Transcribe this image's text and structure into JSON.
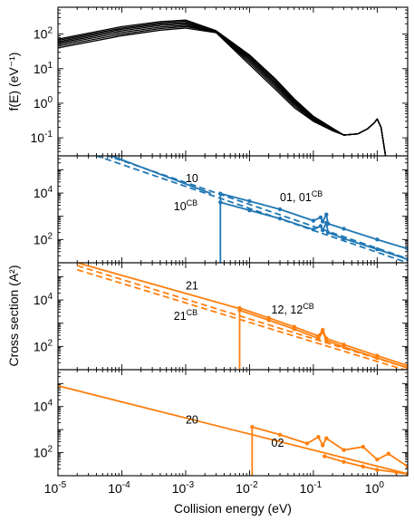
{
  "chart_data": [
    {
      "id": "distribution",
      "type": "line",
      "xscale": "log",
      "yscale": "log",
      "xlim": [
        1e-05,
        3
      ],
      "ylim": [
        0.03,
        600
      ],
      "ylabel": "f(E)  (eV⁻¹)",
      "yticks": [
        {
          "base": "10",
          "exp": "-1",
          "value": 0.1
        },
        {
          "base": "10",
          "exp": "0",
          "value": 1
        },
        {
          "base": "10",
          "exp": "1",
          "value": 10
        },
        {
          "base": "10",
          "exp": "2",
          "value": 100
        }
      ],
      "color": "#000000",
      "series": [
        {
          "x": [
            1e-05,
            0.0001,
            0.0004,
            0.001,
            0.003,
            0.01,
            0.025,
            0.05,
            0.1,
            0.2,
            0.3,
            0.5,
            0.7,
            0.9,
            1.0,
            1.15,
            1.35
          ],
          "y": [
            40,
            90,
            130,
            150,
            110,
            13,
            2.6,
            0.75,
            0.3,
            0.16,
            0.12,
            0.13,
            0.18,
            0.27,
            0.35,
            0.2,
            0.03
          ]
        },
        {
          "x": [
            1e-05,
            0.0001,
            0.0004,
            0.001,
            0.003,
            0.01,
            0.025,
            0.05,
            0.1,
            0.2,
            0.3,
            0.5,
            0.7,
            0.9,
            1.0,
            1.15,
            1.35
          ],
          "y": [
            45,
            100,
            145,
            165,
            115,
            15,
            3.0,
            0.85,
            0.32,
            0.16,
            0.12,
            0.13,
            0.18,
            0.27,
            0.35,
            0.2,
            0.03
          ]
        },
        {
          "x": [
            1e-05,
            0.0001,
            0.0004,
            0.001,
            0.003,
            0.01,
            0.025,
            0.05,
            0.1,
            0.2,
            0.3,
            0.5,
            0.7,
            0.9,
            1.0,
            1.15,
            1.35
          ],
          "y": [
            50,
            112,
            160,
            180,
            118,
            17,
            3.4,
            0.95,
            0.34,
            0.17,
            0.12,
            0.13,
            0.18,
            0.27,
            0.35,
            0.2,
            0.03
          ]
        },
        {
          "x": [
            1e-05,
            0.0001,
            0.0004,
            0.001,
            0.003,
            0.01,
            0.025,
            0.05,
            0.1,
            0.2,
            0.3,
            0.5,
            0.7,
            0.9,
            1.0,
            1.15,
            1.35
          ],
          "y": [
            55,
            125,
            178,
            198,
            120,
            19,
            3.8,
            1.05,
            0.36,
            0.17,
            0.12,
            0.13,
            0.18,
            0.27,
            0.35,
            0.2,
            0.03
          ]
        },
        {
          "x": [
            1e-05,
            0.0001,
            0.0004,
            0.001,
            0.003,
            0.01,
            0.025,
            0.05,
            0.1,
            0.2,
            0.3,
            0.5,
            0.7,
            0.9,
            1.0,
            1.15,
            1.35
          ],
          "y": [
            60,
            138,
            195,
            215,
            122,
            21,
            4.2,
            1.15,
            0.38,
            0.18,
            0.12,
            0.13,
            0.18,
            0.27,
            0.35,
            0.2,
            0.03
          ]
        },
        {
          "x": [
            1e-05,
            0.0001,
            0.0004,
            0.001,
            0.003,
            0.01,
            0.025,
            0.05,
            0.1,
            0.2,
            0.3,
            0.5,
            0.7,
            0.9,
            1.0,
            1.15,
            1.35
          ],
          "y": [
            66,
            150,
            212,
            235,
            124,
            23,
            4.7,
            1.25,
            0.4,
            0.18,
            0.12,
            0.13,
            0.18,
            0.27,
            0.35,
            0.2,
            0.03
          ]
        },
        {
          "x": [
            1e-05,
            0.0001,
            0.0004,
            0.001,
            0.003,
            0.01,
            0.025,
            0.05,
            0.1,
            0.2,
            0.3,
            0.5,
            0.7,
            0.9,
            1.0,
            1.15,
            1.35
          ],
          "y": [
            72,
            165,
            230,
            255,
            126,
            25,
            5.2,
            1.35,
            0.42,
            0.19,
            0.12,
            0.13,
            0.18,
            0.27,
            0.35,
            0.2,
            0.03
          ]
        }
      ]
    },
    {
      "id": "panel-10-01",
      "type": "line",
      "xscale": "log",
      "yscale": "log",
      "xlim": [
        1e-05,
        3
      ],
      "ylim": [
        10,
        400000
      ],
      "yticks": [
        {
          "base": "10",
          "exp": "2",
          "value": 100
        },
        {
          "base": "10",
          "exp": "4",
          "value": 10000
        }
      ],
      "color": "#1f77b4",
      "series": [
        {
          "name": "10",
          "style": "solid",
          "x": [
            1e-05,
            0.0025
          ],
          "y": [
            3000000,
            9500
          ]
        },
        {
          "name": "10CB",
          "style": "dashed",
          "x": [
            1e-05,
            3
          ],
          "y": [
            2200000,
            15
          ]
        },
        {
          "style": "dashed",
          "x": [
            1e-05,
            3
          ],
          "y": [
            1500000,
            10
          ]
        },
        {
          "name": "01",
          "style": "solid",
          "markers": true,
          "x": [
            0.0035,
            0.01,
            0.03,
            0.1,
            0.13,
            0.14,
            0.16,
            0.17,
            0.3,
            1,
            3
          ],
          "y": [
            9500,
            4500,
            2000,
            650,
            900,
            600,
            1200,
            480,
            290,
            100,
            40
          ]
        },
        {
          "name": "01CB",
          "style": "solid",
          "markers": true,
          "x": [
            0.0035,
            0.01,
            0.03,
            0.1,
            0.13,
            0.14,
            0.16,
            0.17,
            0.3,
            1,
            3
          ],
          "y": [
            4000,
            1800,
            800,
            270,
            380,
            250,
            520,
            200,
            110,
            38,
            14
          ]
        },
        {
          "style": "solid",
          "x": [
            0.0035,
            0.0035
          ],
          "y": [
            10,
            9500
          ]
        }
      ],
      "annotations": [
        {
          "text": "10",
          "x": 0.001,
          "y": 30000
        },
        {
          "text": "10",
          "sup": "CB",
          "x": 0.00065,
          "y": 1800
        },
        {
          "text": "01, 01",
          "sup": "CB",
          "x": 0.03,
          "y": 4500
        }
      ]
    },
    {
      "id": "panel-21-12",
      "type": "line",
      "xscale": "log",
      "yscale": "log",
      "xlim": [
        1e-05,
        3
      ],
      "ylim": [
        10,
        400000
      ],
      "yticks": [
        {
          "base": "10",
          "exp": "2",
          "value": 100
        },
        {
          "base": "10",
          "exp": "4",
          "value": 10000
        }
      ],
      "color": "#ff7f0e",
      "series": [
        {
          "name": "21",
          "style": "solid",
          "x": [
            2e-05,
            0.0065
          ],
          "y": [
            400000,
            4500
          ]
        },
        {
          "name": "21CB",
          "style": "dashed",
          "x": [
            2e-05,
            3
          ],
          "y": [
            300000,
            12
          ]
        },
        {
          "style": "dashed",
          "x": [
            2e-05,
            3
          ],
          "y": [
            200000,
            9
          ]
        },
        {
          "name": "12",
          "style": "solid",
          "markers": true,
          "x": [
            0.007,
            0.02,
            0.05,
            0.12,
            0.14,
            0.16,
            0.3,
            1,
            3
          ],
          "y": [
            4500,
            1700,
            700,
            280,
            520,
            220,
            120,
            40,
            15
          ]
        },
        {
          "name": "12CB",
          "style": "solid",
          "markers": true,
          "x": [
            0.007,
            0.02,
            0.05,
            0.12,
            0.14,
            0.16,
            0.3,
            1,
            3
          ],
          "y": [
            3600,
            1350,
            560,
            220,
            420,
            180,
            95,
            32,
            12
          ]
        },
        {
          "style": "solid",
          "x": [
            0.007,
            0.007
          ],
          "y": [
            10,
            4500
          ]
        }
      ],
      "annotations": [
        {
          "text": "21",
          "x": 0.001,
          "y": 28000
        },
        {
          "text": "21",
          "sup": "CB",
          "x": 0.00065,
          "y": 1400
        },
        {
          "text": "12, 12",
          "sup": "CB",
          "x": 0.022,
          "y": 2600
        }
      ]
    },
    {
      "id": "panel-20-02",
      "type": "line",
      "xscale": "log",
      "yscale": "log",
      "xlim": [
        1e-05,
        3
      ],
      "ylim": [
        10,
        400000
      ],
      "yticks": [
        {
          "base": "10",
          "exp": "2",
          "value": 100
        },
        {
          "base": "10",
          "exp": "4",
          "value": 10000
        }
      ],
      "xticks": [
        {
          "base": "10",
          "exp": "-5",
          "value": 1e-05
        },
        {
          "base": "10",
          "exp": "-4",
          "value": 0.0001
        },
        {
          "base": "10",
          "exp": "-3",
          "value": 0.001
        },
        {
          "base": "10",
          "exp": "-2",
          "value": 0.01
        },
        {
          "base": "10",
          "exp": "-1",
          "value": 0.1
        },
        {
          "base": "10",
          "exp": "0",
          "value": 1
        }
      ],
      "xlabel": "Collision energy (eV)",
      "color": "#ff7f0e",
      "series": [
        {
          "name": "20",
          "style": "solid",
          "x": [
            1e-05,
            3
          ],
          "y": [
            80000,
            12
          ]
        },
        {
          "name": "02",
          "style": "solid",
          "markers": true,
          "x": [
            0.011,
            0.03,
            0.08,
            0.12,
            0.14,
            0.16,
            0.3,
            0.6,
            1,
            1.5,
            3
          ],
          "y": [
            1300,
            600,
            250,
            480,
            210,
            420,
            130,
            180,
            50,
            90,
            25
          ]
        },
        {
          "style": "solid",
          "markers": true,
          "x": [
            0.15,
            0.3,
            0.6,
            1,
            2,
            3
          ],
          "y": [
            70,
            40,
            25,
            18,
            14,
            12
          ]
        },
        {
          "style": "solid",
          "x": [
            0.011,
            0.011
          ],
          "y": [
            10,
            1300
          ]
        }
      ],
      "annotations": [
        {
          "text": "20",
          "x": 0.001,
          "y": 1800
        },
        {
          "text": "02",
          "x": 0.022,
          "y": 180
        }
      ]
    }
  ],
  "shared_ylabel": "Cross section (A²)"
}
